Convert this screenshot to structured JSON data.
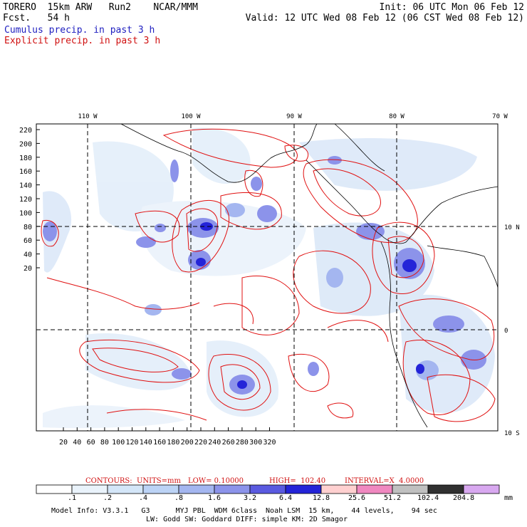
{
  "header": {
    "model_line": "TORERO  15km ARW   Run2    NCAR/MMM",
    "fcst_line": "Fcst.   54 h",
    "init_line": "Init: 06 UTC Mon 06 Feb 12",
    "valid_line": "Valid: 12 UTC Wed 08 Feb 12 (06 CST Wed 08 Feb 12)",
    "legend_cumulus": "Cumulus precip. in past 3 h",
    "legend_explicit": "Explicit precip. in past 3 h"
  },
  "map": {
    "lon_labels": [
      "110 W",
      "100 W",
      "90 W",
      "80 W",
      "70 W"
    ],
    "lat_labels": [
      "10 N",
      "0",
      "10 S"
    ],
    "y_ticks": [
      "220",
      "200",
      "180",
      "160",
      "140",
      "120",
      "100",
      "80",
      "60",
      "40",
      "20"
    ],
    "x_ticks": [
      "20",
      "40",
      "60",
      "80",
      "100",
      "120",
      "140",
      "160",
      "180",
      "200",
      "220",
      "240",
      "260",
      "280",
      "300",
      "320"
    ]
  },
  "contours_line": {
    "contours": "CONTOURS:  UNITS=mm",
    "low": "LOW= 0.10000",
    "high": "HIGH=  102.40",
    "interval": "INTERVAL=X  4.0000"
  },
  "colorbar": {
    "labels": [
      ".1",
      ".2",
      ".4",
      ".8",
      "1.6",
      "3.2",
      "6.4",
      "12.8",
      "25.6",
      "51.2",
      "102.4",
      "204.8"
    ],
    "unit": "mm",
    "colors": [
      "#ffffff",
      "#eaf3fb",
      "#d4e6f8",
      "#bcd3f5",
      "#a4b6f0",
      "#8c93ea",
      "#5a5ae0",
      "#2424d8",
      "#ffd0d0",
      "#f088c0",
      "#c0c0c0",
      "#303030",
      "#d8a8f0"
    ]
  },
  "footer": {
    "line1": "Model Info: V3.3.1   G3      MYJ PBL  WDM 6class  Noah LSM  15 km,    44 levels,    94 sec",
    "line2": "LW: Godd SW: Goddard DIFF: simple KM: 2D Smagor"
  }
}
